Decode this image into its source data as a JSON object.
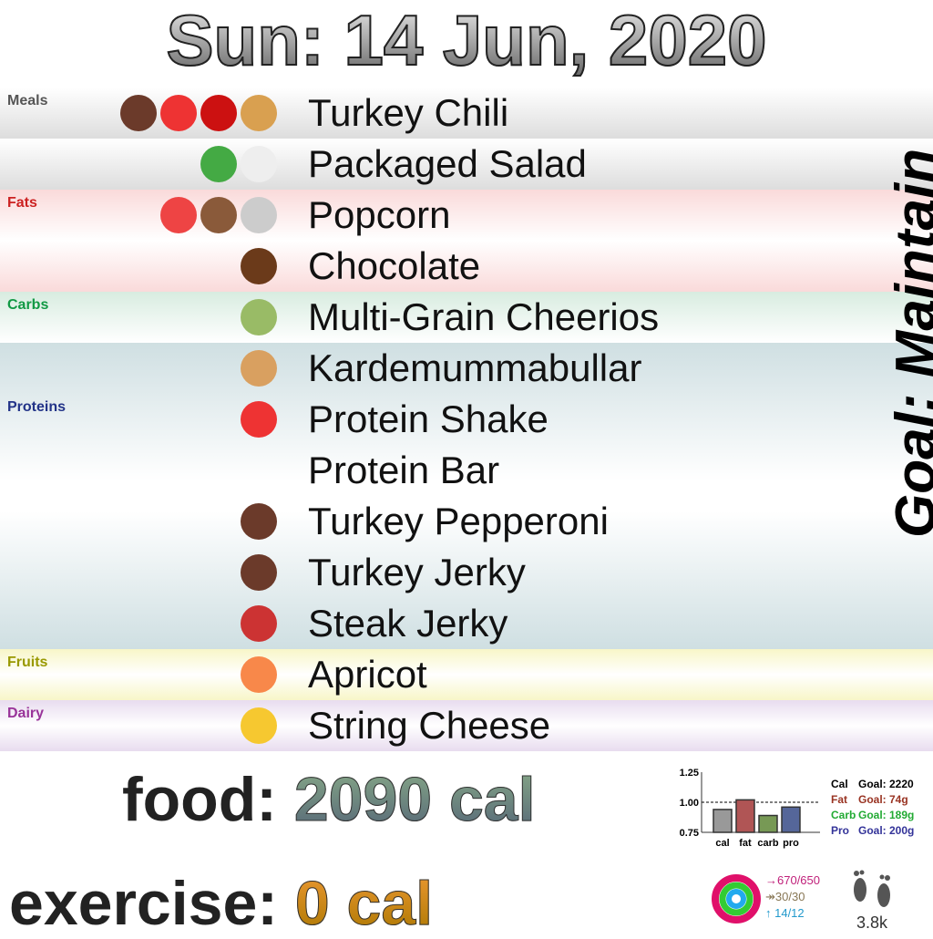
{
  "title": "Sun: 14 Jun, 2020",
  "goal": "Goal: Maintain",
  "categories": [
    {
      "label": "Meals",
      "color": "#555555"
    },
    {
      "label": "Fats",
      "color": "#cc2222"
    },
    {
      "label": "Carbs",
      "color": "#119944"
    },
    {
      "label": "Proteins",
      "color": "#223388"
    },
    {
      "label": "Fruits",
      "color": "#999900"
    },
    {
      "label": "Dairy",
      "color": "#993399"
    }
  ],
  "foods": [
    {
      "name": "Turkey Chili",
      "icons": [
        "turkey-icon",
        "tomato-icon",
        "chili-pepper-icon",
        "onion-icon"
      ]
    },
    {
      "name": "Packaged Salad",
      "icons": [
        "salad-icon",
        "chicken-icon"
      ]
    },
    {
      "name": "Popcorn",
      "icons": [
        "popcorn-icon",
        "coconut-icon",
        "salt-icon"
      ]
    },
    {
      "name": "Chocolate",
      "icons": [
        "chocolate-bar-icon"
      ]
    },
    {
      "name": "Multi-Grain Cheerios",
      "icons": [
        "rice-grain-icon"
      ]
    },
    {
      "name": "Kardemummabullar",
      "icons": [
        "bread-icon"
      ]
    },
    {
      "name": "Protein Shake",
      "icons": [
        "cup-with-straw-icon"
      ]
    },
    {
      "name": "Protein Bar",
      "icons": []
    },
    {
      "name": "Turkey Pepperoni",
      "icons": [
        "turkey-icon"
      ]
    },
    {
      "name": "Turkey Jerky",
      "icons": [
        "turkey-icon"
      ]
    },
    {
      "name": "Steak Jerky",
      "icons": [
        "steak-icon"
      ]
    },
    {
      "name": "Apricot",
      "icons": [
        "peach-icon"
      ]
    },
    {
      "name": "String Cheese",
      "icons": [
        "cheese-icon"
      ]
    }
  ],
  "food_label": "food:",
  "food_value": "2090 cal",
  "exercise_label": "exercise:",
  "exercise_value": "0 cal",
  "chart_data": {
    "type": "bar",
    "categories": [
      "cal",
      "fat",
      "carb",
      "pro"
    ],
    "values": [
      0.94,
      1.02,
      0.89,
      0.96
    ],
    "colors": [
      "#999999",
      "#b05555",
      "#779955",
      "#556699"
    ],
    "ylim": [
      0.75,
      1.25
    ],
    "yticks": [
      "1.25",
      "1.00",
      "0.75"
    ],
    "reference_line": 1.0
  },
  "legend": [
    {
      "k": "Cal",
      "v": "Goal: 2220",
      "color": "#000000"
    },
    {
      "k": "Fat",
      "v": "Goal: 74g",
      "color": "#993322"
    },
    {
      "k": "Carb",
      "v": "Goal: 189g",
      "color": "#22aa33"
    },
    {
      "k": "Pro",
      "v": "Goal: 200g",
      "color": "#333399"
    }
  ],
  "activity": {
    "move": "→670/650",
    "exercise": "↠30/30",
    "stand": "↑ 14/12"
  },
  "steps": "3.8k"
}
